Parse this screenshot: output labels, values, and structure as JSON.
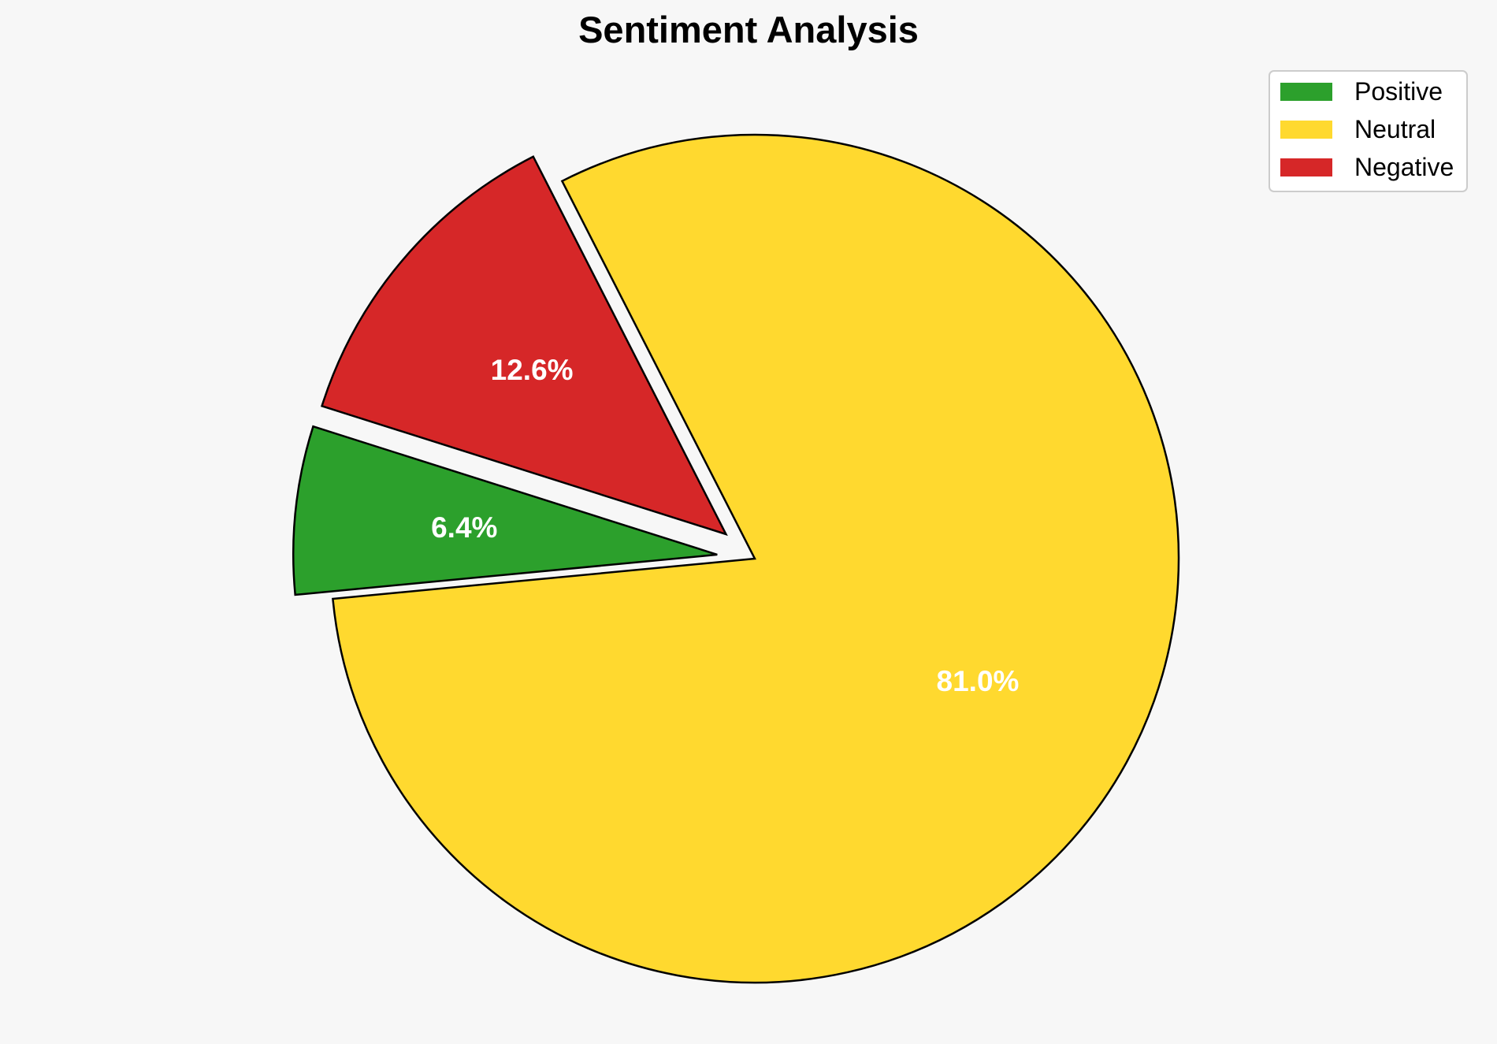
{
  "chart_data": {
    "type": "pie",
    "title": "Sentiment Analysis",
    "categories": [
      "Positive",
      "Neutral",
      "Negative"
    ],
    "values": [
      6.4,
      81.0,
      12.6
    ],
    "labels": [
      "6.4%",
      "81.0%",
      "12.6%"
    ],
    "colors": [
      "#2ca02c",
      "#ffd92f",
      "#d62728"
    ],
    "exploded": [
      true,
      false,
      true
    ],
    "legend": {
      "placement": "top-right",
      "entries": [
        "Positive",
        "Neutral",
        "Negative"
      ]
    }
  }
}
